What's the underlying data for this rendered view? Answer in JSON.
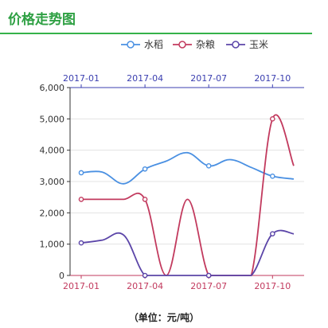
{
  "header": {
    "title": "价格走势图"
  },
  "footer": {
    "unit_label": "（单位：元/吨）"
  },
  "chart_data": {
    "type": "line",
    "x": [
      "2017-01",
      "2017-02",
      "2017-03",
      "2017-04",
      "2017-05",
      "2017-06",
      "2017-07",
      "2017-08",
      "2017-09",
      "2017-10",
      "2017-11"
    ],
    "x_tick_labels": [
      "2017-01",
      "2017-04",
      "2017-07",
      "2017-10"
    ],
    "x_tick_index": [
      0,
      3,
      6,
      9
    ],
    "ylim": [
      0,
      6000
    ],
    "y_ticks": [
      0,
      1000,
      2000,
      3000,
      4000,
      5000,
      6000
    ],
    "y_tick_labels": [
      "0",
      "1,000",
      "2,000",
      "3,000",
      "4,000",
      "5,000",
      "6,000"
    ],
    "legend_position": "top",
    "grid": true,
    "series": [
      {
        "name": "水稻",
        "color": "#4a90e2",
        "values": [
          3280,
          3300,
          2930,
          3400,
          3650,
          3920,
          3500,
          3700,
          3450,
          3170,
          3080
        ]
      },
      {
        "name": "杂粮",
        "color": "#c23a5e",
        "values": [
          2430,
          2430,
          2430,
          2430,
          0,
          2430,
          0,
          0,
          0,
          5000,
          3500
        ]
      },
      {
        "name": "玉米",
        "color": "#5b45a8",
        "values": [
          1040,
          1130,
          1290,
          0,
          0,
          0,
          0,
          0,
          0,
          1330,
          1330
        ]
      }
    ]
  }
}
